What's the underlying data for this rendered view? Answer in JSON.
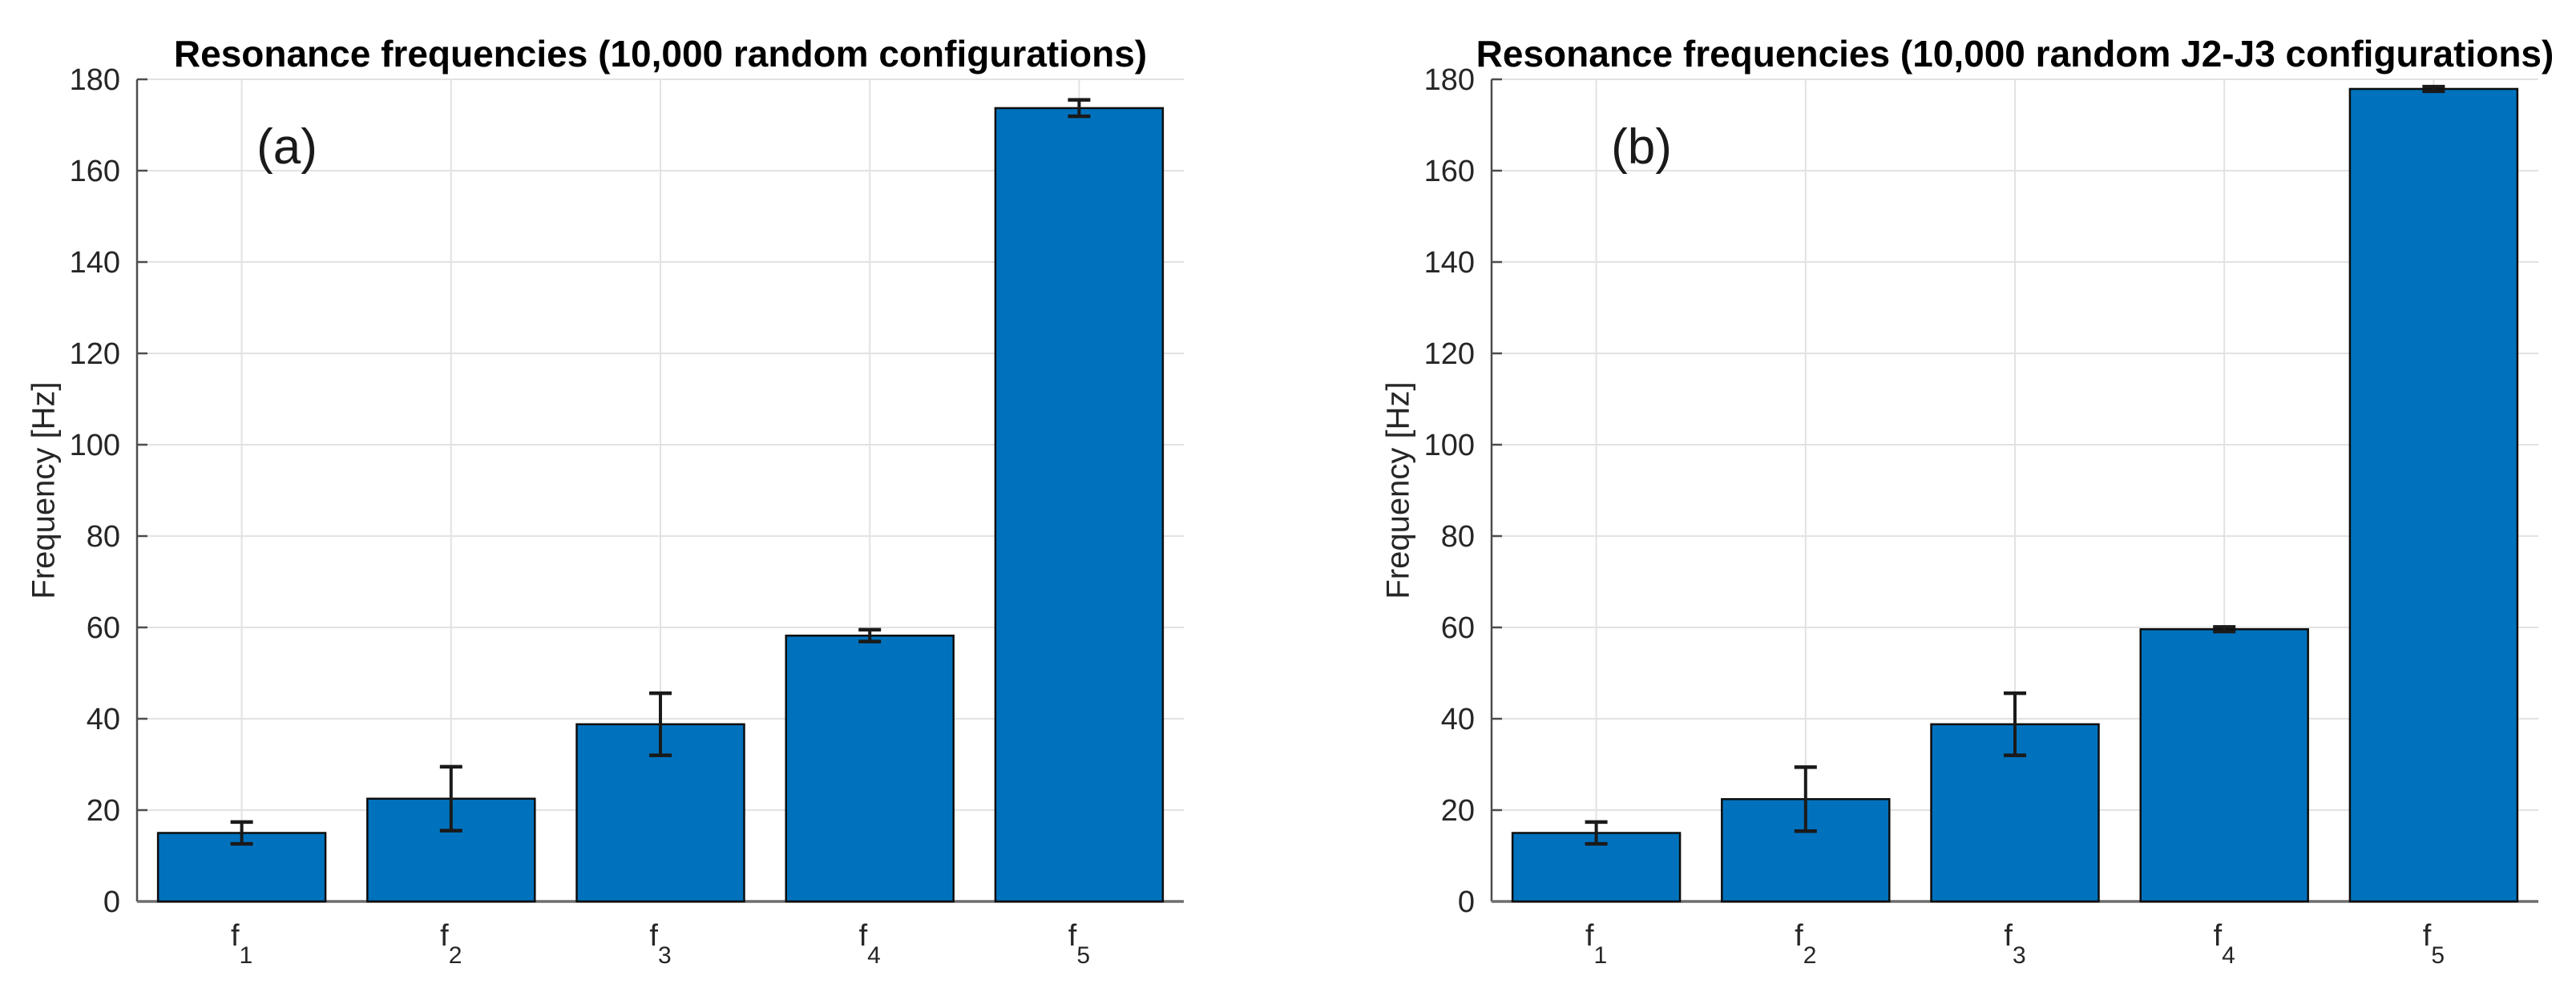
{
  "figure": {
    "background": "#ffffff",
    "panels_count": 2
  },
  "colors": {
    "bar_fill": "#0072BD",
    "bar_edge": "#0d0d0d",
    "error_bar": "#1a1a1a",
    "grid": "#e2e2e2",
    "axis": "#4d4d4d",
    "baseline": "#6e6e6e",
    "tick_text": "#262626",
    "title_text": "#000000"
  },
  "chart_data": [
    {
      "type": "bar",
      "panel_label": "(a)",
      "title": "Resonance frequencies (10,000 random configurations)",
      "xlabel": "",
      "ylabel": "Frequency [Hz]",
      "categories": [
        "f_1",
        "f_2",
        "f_3",
        "f_4",
        "f_5"
      ],
      "values": [
        15.0,
        22.5,
        38.8,
        58.2,
        173.7
      ],
      "error_bars": [
        2.4,
        7.0,
        6.8,
        1.3,
        1.8
      ],
      "ylim": [
        0,
        180
      ],
      "yticks": [
        0,
        20,
        40,
        60,
        80,
        100,
        120,
        140,
        160,
        180
      ],
      "grid": true,
      "legend": "none",
      "bar_width_fraction": 0.8
    },
    {
      "type": "bar",
      "panel_label": "(b)",
      "title": "Resonance frequencies (10,000 random J2-J3 configurations)",
      "xlabel": "",
      "ylabel": "Frequency [Hz]",
      "categories": [
        "f_1",
        "f_2",
        "f_3",
        "f_4",
        "f_5"
      ],
      "values": [
        15.0,
        22.4,
        38.8,
        59.6,
        177.9
      ],
      "error_bars": [
        2.4,
        7.0,
        6.8,
        0.5,
        0.5
      ],
      "ylim": [
        0,
        180
      ],
      "yticks": [
        0,
        20,
        40,
        60,
        80,
        100,
        120,
        140,
        160,
        180
      ],
      "grid": true,
      "legend": "none",
      "bar_width_fraction": 0.8
    }
  ]
}
